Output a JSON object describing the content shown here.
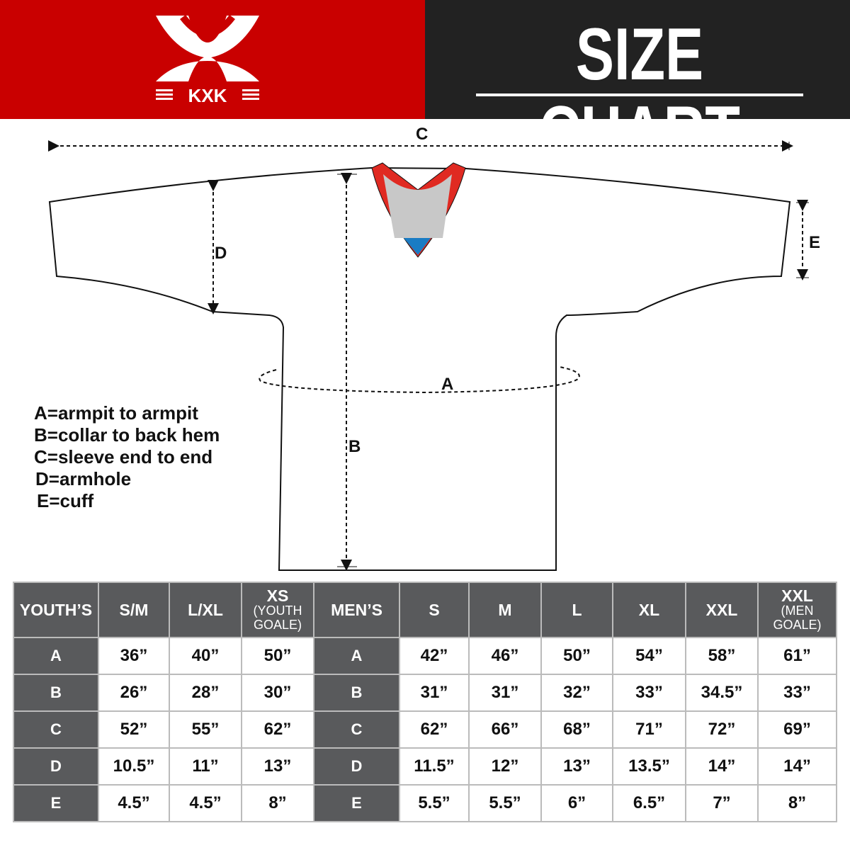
{
  "header": {
    "brand": "KXK",
    "title": "SIZE CHART",
    "brand_color": "#c90000",
    "title_bg": "#222222"
  },
  "diagram": {
    "labels": {
      "a": "A",
      "b": "B",
      "c": "C",
      "d": "D",
      "e": "E"
    },
    "collar_colors": {
      "trim": "#e02a22",
      "inner": "#c8c8c8",
      "tip": "#1a7cc4"
    }
  },
  "legend": [
    "A=armpit to armpit",
    "B=collar to back hem",
    "C=sleeve end to end",
    "D=armhole",
    "E=cuff"
  ],
  "table": {
    "youth_header": "YOUTH’S",
    "youth_sizes": [
      {
        "main": "S/M"
      },
      {
        "main": "L/XL"
      },
      {
        "main": "XS",
        "sub1": "(YOUTH",
        "sub2": "GOALE)"
      }
    ],
    "men_header": "MEN’S",
    "men_sizes": [
      {
        "main": "S"
      },
      {
        "main": "M"
      },
      {
        "main": "L"
      },
      {
        "main": "XL"
      },
      {
        "main": "XXL"
      },
      {
        "main": "XXL",
        "sub1": "(MEN",
        "sub2": "GOALE)"
      }
    ],
    "rows": [
      {
        "label": "A",
        "youth": [
          "36”",
          "40”",
          "50”"
        ],
        "men": [
          "42”",
          "46”",
          "50”",
          "54”",
          "58”",
          "61”"
        ]
      },
      {
        "label": "B",
        "youth": [
          "26”",
          "28”",
          "30”"
        ],
        "men": [
          "31”",
          "31”",
          "32”",
          "33”",
          "34.5”",
          "33”"
        ]
      },
      {
        "label": "C",
        "youth": [
          "52”",
          "55”",
          "62”"
        ],
        "men": [
          "62”",
          "66”",
          "68”",
          "71”",
          "72”",
          "69”"
        ]
      },
      {
        "label": "D",
        "youth": [
          "10.5”",
          "11”",
          "13”"
        ],
        "men": [
          "11.5”",
          "12”",
          "13”",
          "13.5”",
          "14”",
          "14”"
        ]
      },
      {
        "label": "E",
        "youth": [
          "4.5”",
          "4.5”",
          "8”"
        ],
        "men": [
          "5.5”",
          "5.5”",
          "6”",
          "6.5”",
          "7”",
          "8”"
        ]
      }
    ]
  }
}
